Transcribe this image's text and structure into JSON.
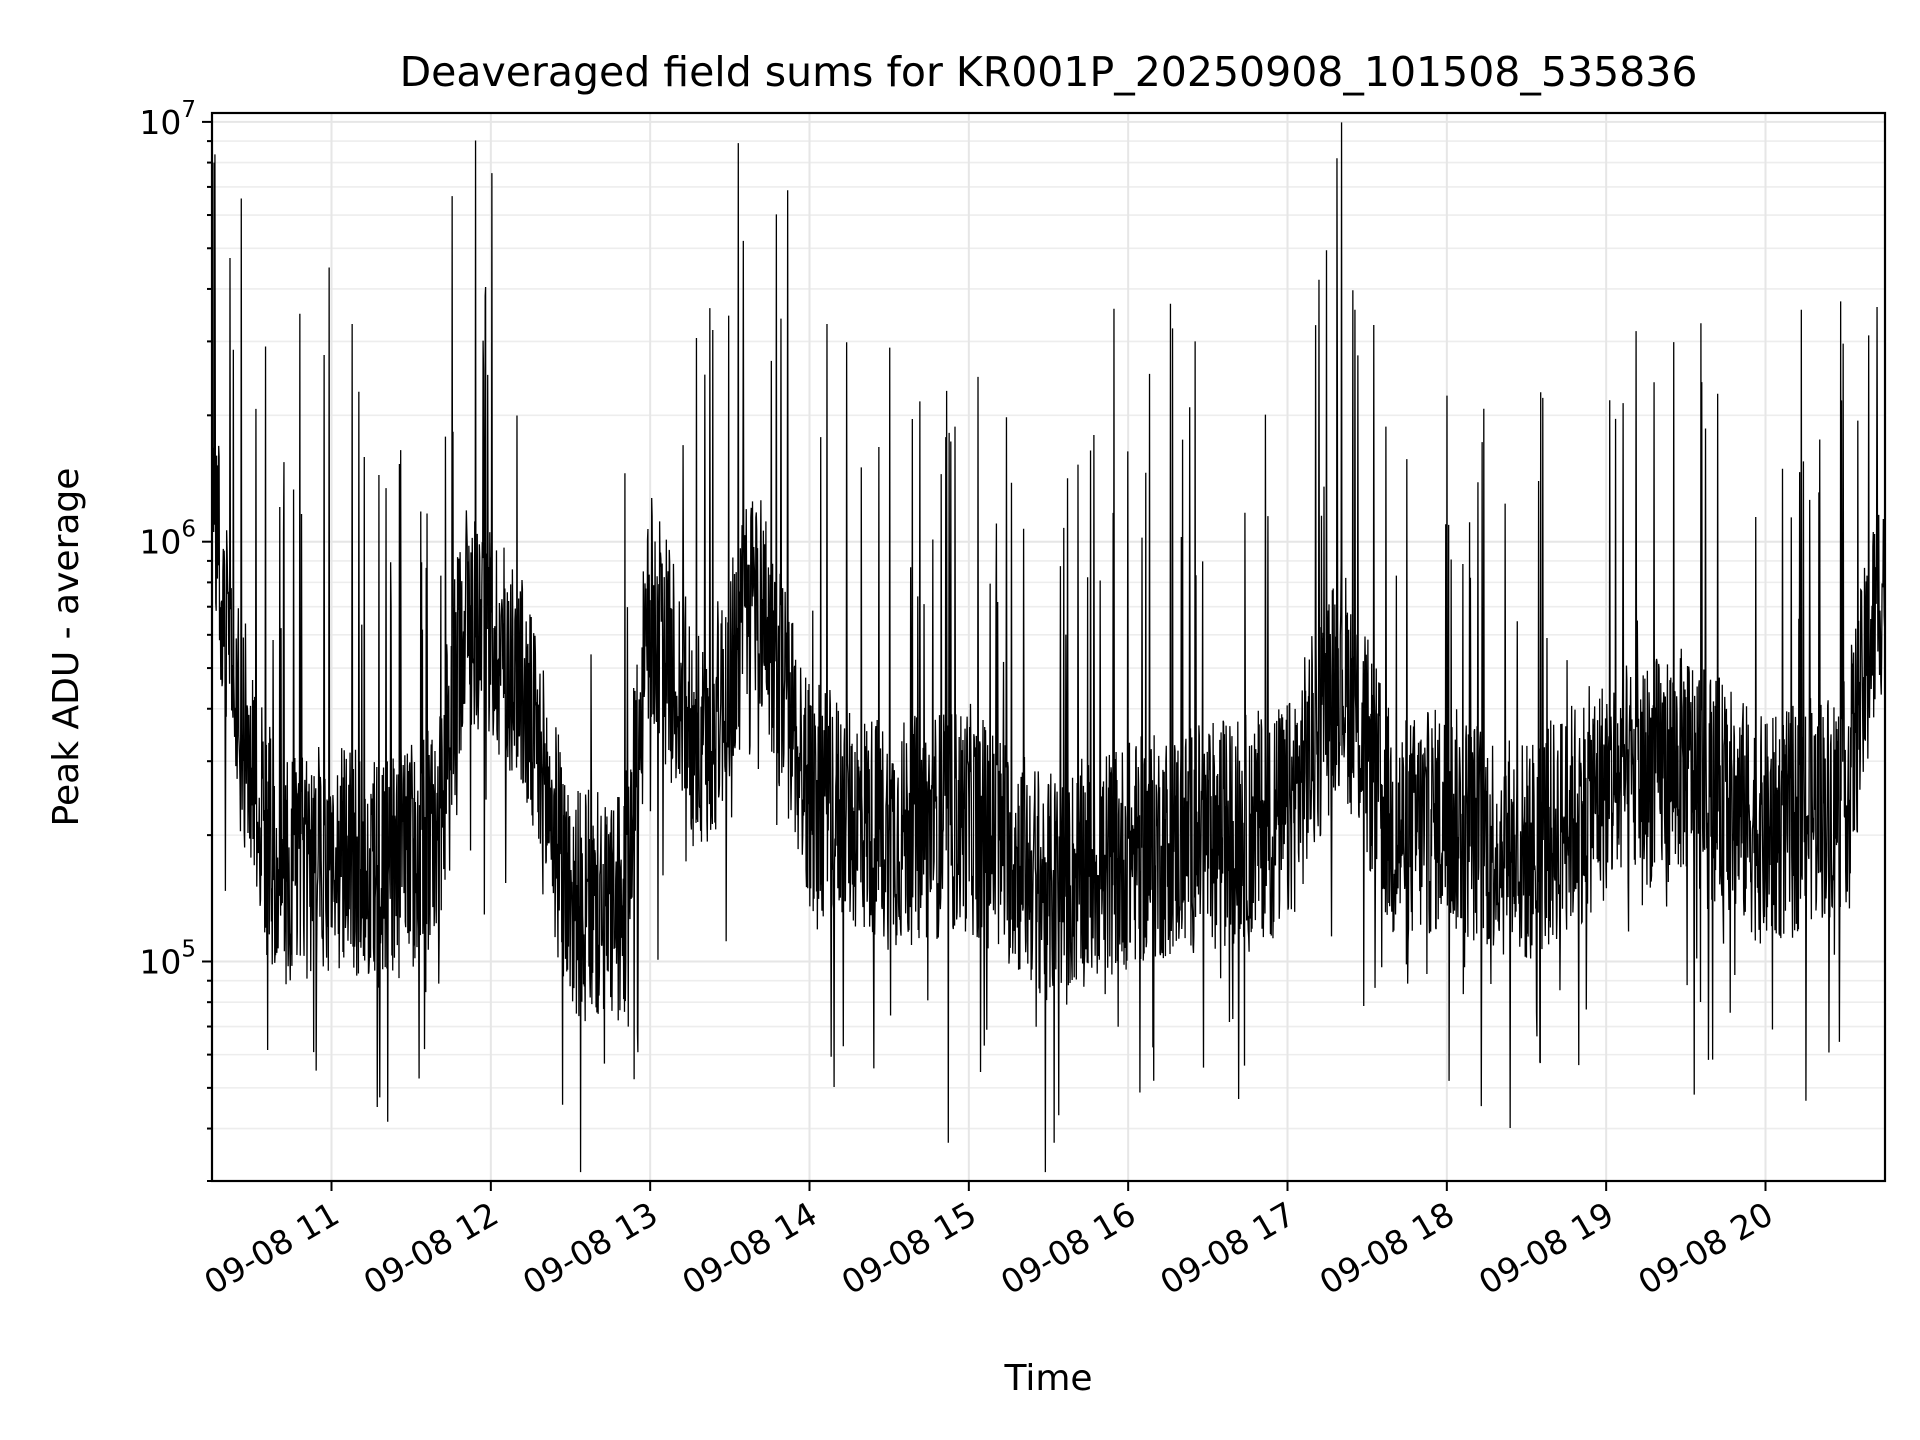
{
  "chart_data": {
    "type": "line",
    "title": "Deaveraged field sums for KR001P_20250908_101508_535836",
    "xlabel": "Time",
    "ylabel": "Peak ADU - average",
    "y_scale": "log",
    "ylim": [
      30000,
      10500000
    ],
    "xlim": [
      "2025-09-08 10:15",
      "2025-09-08 20:45"
    ],
    "x_ticks": [
      "09-08 11",
      "09-08 12",
      "09-08 13",
      "09-08 14",
      "09-08 15",
      "09-08 16",
      "09-08 17",
      "09-08 18",
      "09-08 19",
      "09-08 20"
    ],
    "y_ticks": [
      {
        "value": 100000,
        "base": "10",
        "exp": "5"
      },
      {
        "value": 1000000,
        "base": "10",
        "exp": "6"
      },
      {
        "value": 10000000,
        "base": "10",
        "exp": "7"
      }
    ],
    "grid": true,
    "series": [
      {
        "color": "#000000",
        "approximate_regime_levels": {
          "times": [
            "2025-09-08 10:15",
            "2025-09-08 10:25",
            "2025-09-08 10:40",
            "2025-09-08 11:00",
            "2025-09-08 11:20",
            "2025-09-08 11:40",
            "2025-09-08 11:50",
            "2025-09-08 12:10",
            "2025-09-08 12:30",
            "2025-09-08 12:50",
            "2025-09-08 13:00",
            "2025-09-08 13:20",
            "2025-09-08 13:40",
            "2025-09-08 14:00",
            "2025-09-08 14:30",
            "2025-09-08 15:00",
            "2025-09-08 15:30",
            "2025-09-08 16:00",
            "2025-09-08 16:30",
            "2025-09-08 17:00",
            "2025-09-08 17:20",
            "2025-09-08 17:40",
            "2025-09-08 18:00",
            "2025-09-08 18:30",
            "2025-09-08 19:00",
            "2025-09-08 19:30",
            "2025-09-08 20:00",
            "2025-09-08 20:30",
            "2025-09-08 20:45"
          ],
          "values": [
            1200000,
            400000,
            160000,
            180000,
            160000,
            200000,
            700000,
            500000,
            140000,
            130000,
            700000,
            300000,
            800000,
            250000,
            200000,
            220000,
            150000,
            180000,
            200000,
            220000,
            500000,
            200000,
            220000,
            180000,
            260000,
            300000,
            200000,
            250000,
            900000
          ]
        },
        "peak_values": [
          8000000,
          4500000,
          3600000,
          3400000,
          3300000,
          2900000,
          3000000,
          3100000
        ]
      }
    ]
  }
}
